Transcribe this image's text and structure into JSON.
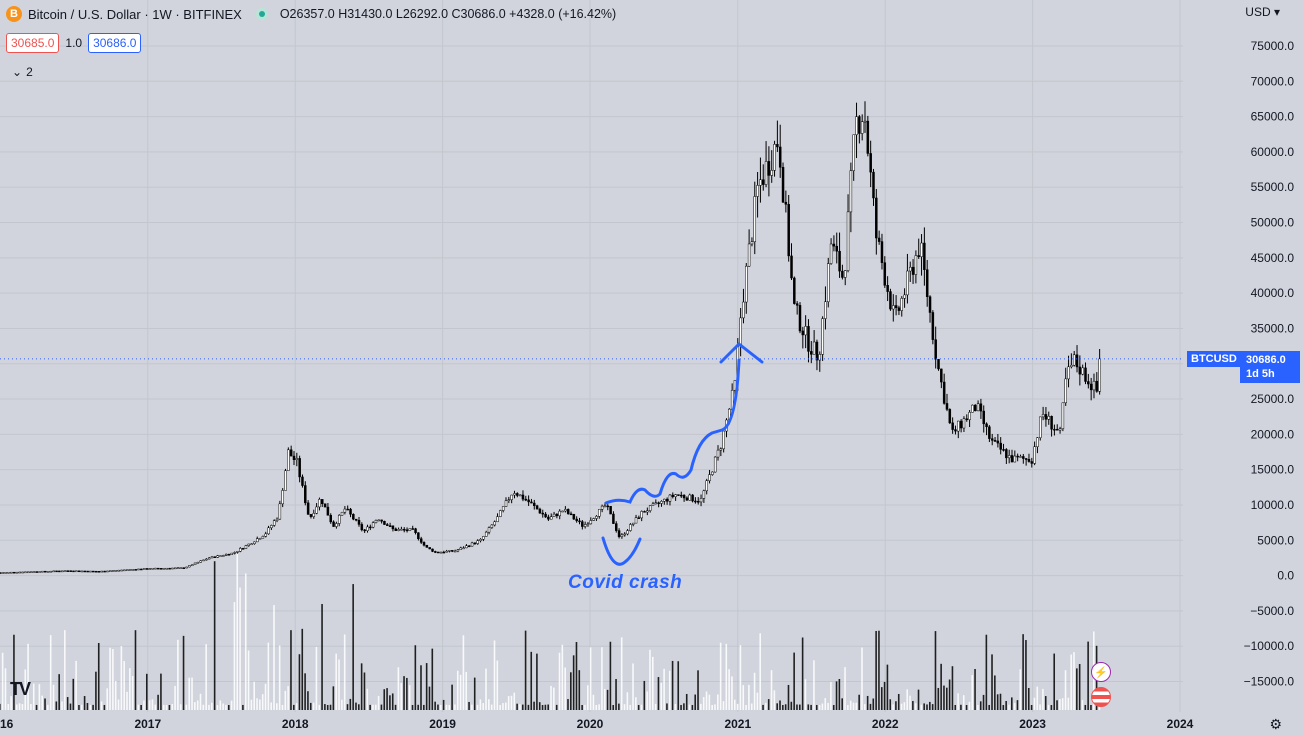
{
  "header": {
    "symbol_icon": "B",
    "title": "Bitcoin / U.S. Dollar · 1W · BITFINEX",
    "ohlc": "O26357.0 H31430.0 L26292.0 C30686.0 +4328.0 (+16.42%)",
    "sell_price": "30685.0",
    "spread": "1.0",
    "buy_price": "30686.0",
    "collapse_count": "2",
    "currency": "USD",
    "logo": "TV"
  },
  "price_label": {
    "symbol": "BTCUSD",
    "price": "30686.0",
    "countdown": "1d 5h"
  },
  "annotation": {
    "text": "Covid crash"
  },
  "colors": {
    "background": "#d1d4dc",
    "accent": "#2962ff",
    "candle": "#000000",
    "sell": "#ef5350",
    "live": "#26a69a"
  },
  "icons": {
    "settings": "gear-icon",
    "collapse": "chevron-down-icon",
    "live": "live-dot-icon",
    "event": "lightning-icon",
    "economic": "us-flag-icon"
  },
  "chart_data": {
    "type": "candlestick",
    "interval": "1W",
    "current_price": 30686.0,
    "ylim": [
      -18000,
      78000
    ],
    "yticks": [
      75000,
      70000,
      65000,
      60000,
      55000,
      50000,
      45000,
      40000,
      35000,
      30000,
      25000,
      20000,
      15000,
      10000,
      5000,
      0,
      -5000,
      -10000,
      -15000
    ],
    "ytick_labels": [
      "75000.0",
      "70000.0",
      "65000.0",
      "60000.0",
      "55000.0",
      "50000.0",
      "45000.0",
      "40000.0",
      "35000.0",
      "30000.0",
      "25000.0",
      "20000.0",
      "15000.0",
      "10000.0",
      "5000.0",
      "0.0",
      "−5000.0",
      "−10000.0",
      "−15000.0"
    ],
    "xticks": [
      {
        "label": "16",
        "date": "2016-01-01"
      },
      {
        "label": "2017",
        "date": "2017-01-01"
      },
      {
        "label": "2018",
        "date": "2018-01-01"
      },
      {
        "label": "2019",
        "date": "2019-01-01"
      },
      {
        "label": "2020",
        "date": "2020-01-01"
      },
      {
        "label": "2021",
        "date": "2021-01-01"
      },
      {
        "label": "2022",
        "date": "2022-01-01"
      },
      {
        "label": "2023",
        "date": "2023-01-01"
      },
      {
        "label": "2024",
        "date": "2024-01-01"
      }
    ],
    "price_series": [
      {
        "date": "2016-01-01",
        "price": 430
      },
      {
        "date": "2016-06-15",
        "price": 700
      },
      {
        "date": "2016-09-01",
        "price": 600
      },
      {
        "date": "2017-01-01",
        "price": 1000
      },
      {
        "date": "2017-04-01",
        "price": 1100
      },
      {
        "date": "2017-06-01",
        "price": 2500
      },
      {
        "date": "2017-08-01",
        "price": 3200
      },
      {
        "date": "2017-09-10",
        "price": 4500
      },
      {
        "date": "2017-10-20",
        "price": 6000
      },
      {
        "date": "2017-11-20",
        "price": 8500
      },
      {
        "date": "2017-12-15",
        "price": 17500
      },
      {
        "date": "2018-01-05",
        "price": 16000
      },
      {
        "date": "2018-02-05",
        "price": 8000
      },
      {
        "date": "2018-03-05",
        "price": 11000
      },
      {
        "date": "2018-04-05",
        "price": 7000
      },
      {
        "date": "2018-05-05",
        "price": 9500
      },
      {
        "date": "2018-06-20",
        "price": 6200
      },
      {
        "date": "2018-07-25",
        "price": 8200
      },
      {
        "date": "2018-09-01",
        "price": 6500
      },
      {
        "date": "2018-10-20",
        "price": 6400
      },
      {
        "date": "2018-11-20",
        "price": 4000
      },
      {
        "date": "2018-12-15",
        "price": 3300
      },
      {
        "date": "2019-02-01",
        "price": 3500
      },
      {
        "date": "2019-04-05",
        "price": 5000
      },
      {
        "date": "2019-05-15",
        "price": 8000
      },
      {
        "date": "2019-06-25",
        "price": 12000
      },
      {
        "date": "2019-08-01",
        "price": 10500
      },
      {
        "date": "2019-09-20",
        "price": 8000
      },
      {
        "date": "2019-10-28",
        "price": 9300
      },
      {
        "date": "2019-12-15",
        "price": 7000
      },
      {
        "date": "2020-02-10",
        "price": 10000
      },
      {
        "date": "2020-03-15",
        "price": 5300
      },
      {
        "date": "2020-05-10",
        "price": 9000
      },
      {
        "date": "2020-08-01",
        "price": 11500
      },
      {
        "date": "2020-10-01",
        "price": 10600
      },
      {
        "date": "2020-11-20",
        "price": 18500
      },
      {
        "date": "2020-12-25",
        "price": 27000
      },
      {
        "date": "2021-01-10",
        "price": 38000
      },
      {
        "date": "2021-02-20",
        "price": 55000
      },
      {
        "date": "2021-04-12",
        "price": 62000
      },
      {
        "date": "2021-05-20",
        "price": 38000
      },
      {
        "date": "2021-06-25",
        "price": 33000
      },
      {
        "date": "2021-07-20",
        "price": 31000
      },
      {
        "date": "2021-08-20",
        "price": 47000
      },
      {
        "date": "2021-09-20",
        "price": 42000
      },
      {
        "date": "2021-10-20",
        "price": 64000
      },
      {
        "date": "2021-11-10",
        "price": 66000
      },
      {
        "date": "2021-12-10",
        "price": 48000
      },
      {
        "date": "2022-01-25",
        "price": 36000
      },
      {
        "date": "2022-03-28",
        "price": 47000
      },
      {
        "date": "2022-05-10",
        "price": 30000
      },
      {
        "date": "2022-06-15",
        "price": 20000
      },
      {
        "date": "2022-08-15",
        "price": 24000
      },
      {
        "date": "2022-09-20",
        "price": 19000
      },
      {
        "date": "2022-11-10",
        "price": 16500
      },
      {
        "date": "2022-12-30",
        "price": 16500
      },
      {
        "date": "2023-01-25",
        "price": 23000
      },
      {
        "date": "2023-03-10",
        "price": 20000
      },
      {
        "date": "2023-03-25",
        "price": 28000
      },
      {
        "date": "2023-04-14",
        "price": 30400
      },
      {
        "date": "2023-06-10",
        "price": 26000
      },
      {
        "date": "2023-06-20",
        "price": 30686
      }
    ],
    "grid": true,
    "legend": "none"
  }
}
